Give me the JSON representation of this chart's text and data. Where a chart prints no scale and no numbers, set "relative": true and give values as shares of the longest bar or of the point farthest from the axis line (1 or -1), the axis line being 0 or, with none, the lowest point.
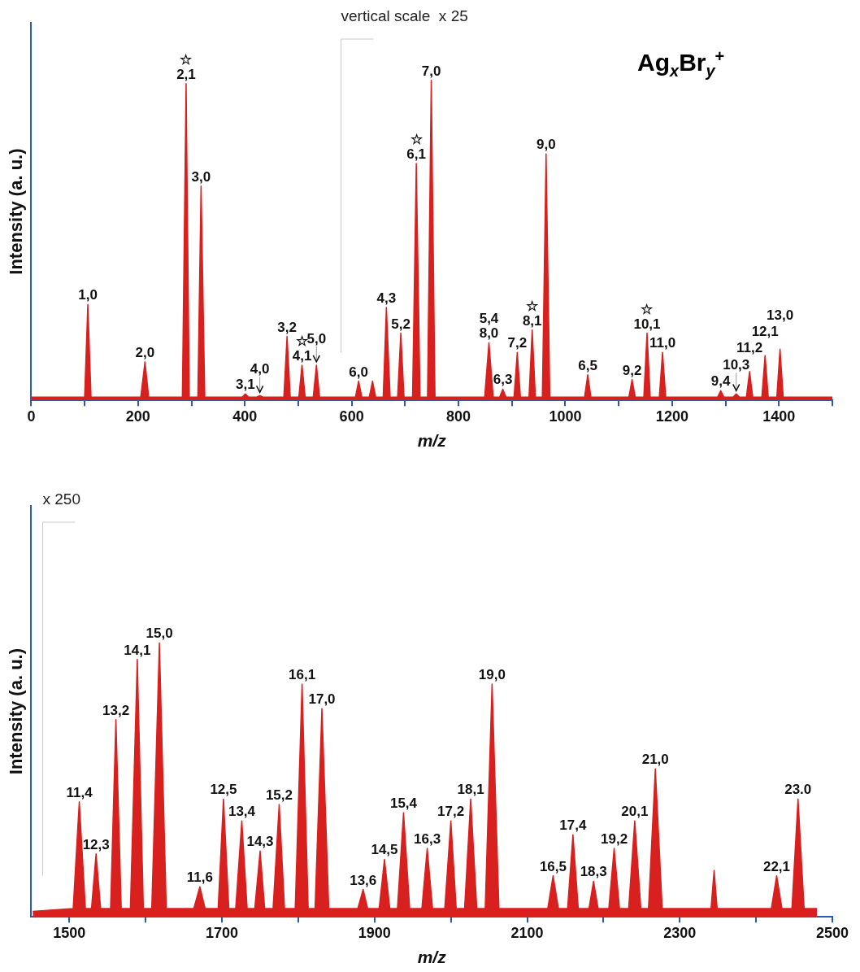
{
  "chart_data": [
    {
      "type": "area",
      "title": "Ag$_{x}$Br$_{y}$$^{+}$",
      "xlabel": "m/z",
      "ylabel": "Intensity (a. u.)",
      "relative": true,
      "legend": false,
      "grid": false,
      "marker": "none",
      "xlim": [
        0,
        1500
      ],
      "xticks": [
        0,
        {
          "value": 100,
          "label": null
        },
        200,
        {
          "value": 300,
          "label": null
        },
        400,
        {
          "value": 500,
          "label": null
        },
        600,
        {
          "value": 700,
          "label": null
        },
        800,
        {
          "value": 900,
          "label": null
        },
        1000,
        {
          "value": 1100,
          "label": null
        },
        1200,
        {
          "value": 1300,
          "label": null
        },
        1400,
        {
          "value": 1500,
          "label": null
        }
      ],
      "series": [
        {
          "color": "#d8201e",
          "x": [
            0,
            100,
            106,
            112,
            205,
            213,
            220,
            283,
            290,
            296,
            312,
            318,
            325,
            395,
            401,
            407,
            422,
            428,
            434,
            473,
            479,
            485,
            501,
            507,
            513,
            528,
            534,
            540,
            607,
            613,
            619,
            633,
            639,
            645,
            659,
            665,
            672,
            686,
            692,
            698,
            714,
            721,
            728,
            742,
            749,
            756,
            849,
            857,
            865,
            877,
            883,
            889,
            904,
            910,
            916,
            932,
            938,
            944,
            957,
            964,
            971,
            1036,
            1042,
            1048,
            1119,
            1125,
            1131,
            1147,
            1153,
            1159,
            1176,
            1182,
            1188,
            1285,
            1291,
            1297,
            1314,
            1320,
            1326,
            1339,
            1345,
            1351,
            1368,
            1374,
            1380,
            1396,
            1402,
            1408,
            1500
          ],
          "values": [
            0.01,
            0.01,
            0.3,
            0.01,
            0.01,
            0.12,
            0.01,
            0.01,
            0.99,
            0.01,
            0.01,
            0.67,
            0.01,
            0.01,
            0.02,
            0.01,
            0.01,
            0.015,
            0.01,
            0.01,
            0.2,
            0.01,
            0.01,
            0.11,
            0.01,
            0.01,
            0.11,
            0.01,
            0.01,
            0.06,
            0.01,
            0.01,
            0.06,
            0.01,
            0.01,
            0.29,
            0.01,
            0.01,
            0.21,
            0.01,
            0.01,
            0.74,
            0.01,
            0.01,
            1,
            0.01,
            0.01,
            0.18,
            0.01,
            0.01,
            0.035,
            0.01,
            0.01,
            0.15,
            0.01,
            0.01,
            0.22,
            0.01,
            0.01,
            0.77,
            0.01,
            0.01,
            0.08,
            0.01,
            0.01,
            0.065,
            0.01,
            0.01,
            0.21,
            0.01,
            0.01,
            0.15,
            0.01,
            0.01,
            0.03,
            0.01,
            0.01,
            0.02,
            0.01,
            0.01,
            0.09,
            0.01,
            0.01,
            0.14,
            0.01,
            0.01,
            0.16,
            0.01,
            0.01
          ]
        }
      ],
      "ref_lines": [
        {
          "axis": "x",
          "value": 580,
          "label": "vertical scale  x 25",
          "color": "#c8c8c8"
        }
      ],
      "annotations": [
        {
          "text": "1,0",
          "x": 106,
          "y": 0.3
        },
        {
          "text": "2,0",
          "x": 213,
          "y": 0.12
        },
        {
          "text": "2,1",
          "x": 290,
          "y": 0.99
        },
        {
          "text": "3,0",
          "x": 318,
          "y": 0.67
        },
        {
          "text": "3,1",
          "x": 401,
          "y": 0.02
        },
        {
          "text": "4,0",
          "x": 428,
          "y": 0.015
        },
        {
          "text": "3,2",
          "x": 479,
          "y": 0.2
        },
        {
          "text": "4,1",
          "x": 507,
          "y": 0.11
        },
        {
          "text": "5,0",
          "x": 534,
          "y": 0.11
        },
        {
          "text": "6,0",
          "x": 613,
          "y": 0.06
        },
        {
          "text": "4,3",
          "x": 665,
          "y": 0.29
        },
        {
          "text": "5,2",
          "x": 692,
          "y": 0.21
        },
        {
          "text": "6,1",
          "x": 721,
          "y": 0.74
        },
        {
          "text": "7,0",
          "x": 749,
          "y": 1
        },
        {
          "text": "8,0",
          "x": 857,
          "y": 0.18
        },
        {
          "text": "5,4",
          "x": 857,
          "y": 0.18
        },
        {
          "text": "6,3",
          "x": 883,
          "y": 0.035
        },
        {
          "text": "7,2",
          "x": 910,
          "y": 0.15
        },
        {
          "text": "8,1",
          "x": 938,
          "y": 0.22
        },
        {
          "text": "9,0",
          "x": 964,
          "y": 0.77
        },
        {
          "text": "6,5",
          "x": 1042,
          "y": 0.08
        },
        {
          "text": "9,2",
          "x": 1125,
          "y": 0.065
        },
        {
          "text": "10,1",
          "x": 1153,
          "y": 0.21
        },
        {
          "text": "11,0",
          "x": 1182,
          "y": 0.15
        },
        {
          "text": "9,4",
          "x": 1291,
          "y": 0.03
        },
        {
          "text": "10,3",
          "x": 1320,
          "y": 0.02
        },
        {
          "text": "11,2",
          "x": 1345,
          "y": 0.09
        },
        {
          "text": "12,1",
          "x": 1374,
          "y": 0.14
        },
        {
          "text": "13,0",
          "x": 1402,
          "y": 0.16
        },
        {
          "text": "☆",
          "x": 290,
          "y": 0.99
        },
        {
          "text": "☆",
          "x": 721,
          "y": 0.74
        },
        {
          "text": "☆",
          "x": 507,
          "y": 0.11
        },
        {
          "text": "☆",
          "x": 938,
          "y": 0.22
        },
        {
          "text": "☆",
          "x": 1153,
          "y": 0.21
        }
      ]
    },
    {
      "type": "area",
      "xlabel": "m/z",
      "ylabel": "Intensity (a. u.)",
      "relative": true,
      "legend": false,
      "grid": false,
      "marker": "none",
      "xlim": [
        1450,
        2500
      ],
      "xticks": [
        1500,
        {
          "value": 1600,
          "label": null
        },
        1700,
        {
          "value": 1800,
          "label": null
        },
        1900,
        {
          "value": 2000,
          "label": null
        },
        2100,
        {
          "value": 2200,
          "label": null
        },
        2300,
        {
          "value": 2400,
          "label": null
        },
        2500
      ],
      "series": [
        {
          "color": "#d8201e",
          "x": [
            1452,
            1505,
            1513,
            1521,
            1529,
            1535,
            1541,
            1554,
            1561,
            1568,
            1580,
            1589,
            1597,
            1608,
            1618,
            1627,
            1663,
            1671,
            1678,
            1695,
            1702,
            1709,
            1718,
            1726,
            1733,
            1743,
            1750,
            1756,
            1767,
            1775,
            1782,
            1796,
            1805,
            1813,
            1822,
            1831,
            1840,
            1878,
            1885,
            1891,
            1906,
            1913,
            1920,
            1930,
            1938,
            1946,
            1962,
            1969,
            1976,
            1992,
            2000,
            2007,
            2018,
            2026,
            2034,
            2045,
            2054,
            2063,
            2127,
            2134,
            2141,
            2153,
            2160,
            2167,
            2181,
            2187,
            2193,
            2207,
            2214,
            2221,
            2233,
            2241,
            2249,
            2259,
            2268,
            2277,
            2341,
            2345,
            2349,
            2420,
            2427,
            2434,
            2447,
            2455,
            2463,
            2480
          ],
          "values": [
            0.02,
            0.03,
            0.42,
            0.03,
            0.03,
            0.23,
            0.03,
            0.03,
            0.72,
            0.03,
            0.03,
            0.94,
            0.03,
            0.03,
            1,
            0.03,
            0.03,
            0.11,
            0.03,
            0.03,
            0.43,
            0.03,
            0.03,
            0.35,
            0.03,
            0.03,
            0.24,
            0.03,
            0.03,
            0.41,
            0.03,
            0.03,
            0.85,
            0.03,
            0.03,
            0.76,
            0.03,
            0.03,
            0.1,
            0.03,
            0.03,
            0.21,
            0.03,
            0.03,
            0.38,
            0.03,
            0.03,
            0.25,
            0.03,
            0.03,
            0.35,
            0.03,
            0.03,
            0.43,
            0.03,
            0.03,
            0.85,
            0.03,
            0.03,
            0.15,
            0.03,
            0.03,
            0.3,
            0.03,
            0.03,
            0.13,
            0.03,
            0.03,
            0.25,
            0.03,
            0.03,
            0.35,
            0.03,
            0.03,
            0.54,
            0.03,
            0.03,
            0.17,
            0.03,
            0.03,
            0.15,
            0.03,
            0.03,
            0.43,
            0.03,
            0.03
          ]
        }
      ],
      "ref_lines": [
        {
          "axis": "x",
          "value": 1465,
          "label": "x 250",
          "color": "#c8c8c8"
        }
      ],
      "annotations": [
        {
          "text": "11,4",
          "x": 1513,
          "y": 0.42
        },
        {
          "text": "12,3",
          "x": 1535,
          "y": 0.23
        },
        {
          "text": "13,2",
          "x": 1561,
          "y": 0.72
        },
        {
          "text": "14,1",
          "x": 1589,
          "y": 0.94
        },
        {
          "text": "15,0",
          "x": 1618,
          "y": 1
        },
        {
          "text": "11,6",
          "x": 1671,
          "y": 0.11
        },
        {
          "text": "12,5",
          "x": 1702,
          "y": 0.43
        },
        {
          "text": "13,4",
          "x": 1726,
          "y": 0.35
        },
        {
          "text": "14,3",
          "x": 1750,
          "y": 0.24
        },
        {
          "text": "15,2",
          "x": 1775,
          "y": 0.41
        },
        {
          "text": "16,1",
          "x": 1805,
          "y": 0.85
        },
        {
          "text": "17,0",
          "x": 1831,
          "y": 0.76
        },
        {
          "text": "13,6",
          "x": 1885,
          "y": 0.1
        },
        {
          "text": "14,5",
          "x": 1913,
          "y": 0.21
        },
        {
          "text": "15,4",
          "x": 1938,
          "y": 0.38
        },
        {
          "text": "16,3",
          "x": 1969,
          "y": 0.25
        },
        {
          "text": "17,2",
          "x": 2000,
          "y": 0.35
        },
        {
          "text": "18,1",
          "x": 2026,
          "y": 0.43
        },
        {
          "text": "19,0",
          "x": 2054,
          "y": 0.85
        },
        {
          "text": "16,5",
          "x": 2134,
          "y": 0.15
        },
        {
          "text": "17,4",
          "x": 2160,
          "y": 0.3
        },
        {
          "text": "18,3",
          "x": 2187,
          "y": 0.13
        },
        {
          "text": "19,2",
          "x": 2214,
          "y": 0.25
        },
        {
          "text": "20,1",
          "x": 2241,
          "y": 0.35
        },
        {
          "text": "21,0",
          "x": 2268,
          "y": 0.54
        },
        {
          "text": "22,1",
          "x": 2427,
          "y": 0.15
        },
        {
          "text": "23.0",
          "x": 2455,
          "y": 0.43
        }
      ]
    }
  ]
}
